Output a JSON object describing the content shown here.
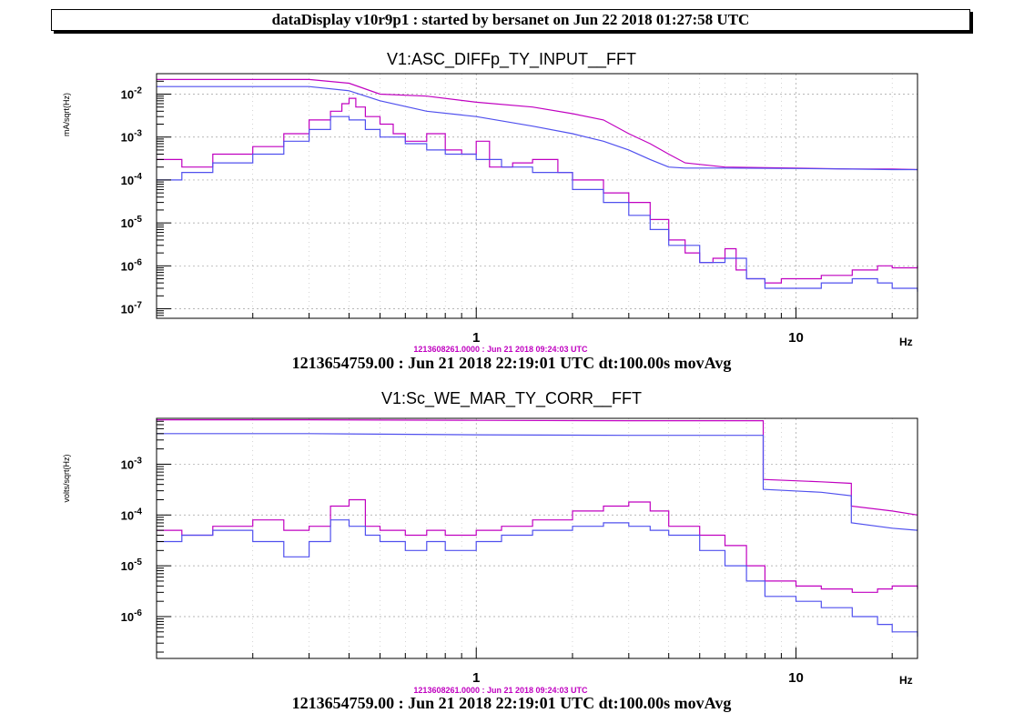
{
  "header": {
    "title": "dataDisplay v10r9p1 : started by bersanet on Jun 22 2018 01:27:58 UTC"
  },
  "colors": {
    "series_magenta": "#c000c0",
    "series_blue": "#5050ee",
    "grid": "#a0a0a0",
    "stamp": "#c000c0"
  },
  "chart_data": [
    {
      "type": "line",
      "title": "V1:ASC_DIFFp_TY_INPUT__FFT",
      "ylabel": "mA/sqrt(Hz)",
      "xlabel": "Hz",
      "x_scale": "log",
      "y_scale": "log",
      "xlim": [
        0.1,
        24
      ],
      "ylim": [
        6e-08,
        0.03
      ],
      "grid": true,
      "x_tick_labels": [
        {
          "value": 1,
          "label": "1"
        },
        {
          "value": 10,
          "label": "10"
        }
      ],
      "y_tick_labels": [
        {
          "value": 0.01,
          "mant": "10",
          "exp": "-2"
        },
        {
          "value": 0.001,
          "mant": "10",
          "exp": "-3"
        },
        {
          "value": 0.0001,
          "mant": "10",
          "exp": "-4"
        },
        {
          "value": 1e-05,
          "mant": "10",
          "exp": "-5"
        },
        {
          "value": 1e-06,
          "mant": "10",
          "exp": "-6"
        },
        {
          "value": 1e-07,
          "mant": "10",
          "exp": "-7"
        }
      ],
      "reference_stamp": "1213608261.0000 : Jun 21 2018 09:24:03 UTC",
      "footer": "1213654759.00 : Jun 21 2018 22:19:01 UTC dt:100.00s movAvg",
      "series": [
        {
          "style": "step",
          "color": "#c000c0",
          "x": [
            0.1,
            0.12,
            0.15,
            0.2,
            0.25,
            0.3,
            0.35,
            0.38,
            0.4,
            0.42,
            0.45,
            0.5,
            0.55,
            0.6,
            0.7,
            0.8,
            0.9,
            1.0,
            1.1,
            1.3,
            1.5,
            1.8,
            2.0,
            2.5,
            3.0,
            3.5,
            4.0,
            4.5,
            5.0,
            5.5,
            6.0,
            6.5,
            7.0,
            8.0,
            9.0,
            10,
            12,
            15,
            18,
            20,
            24
          ],
          "y": [
            0.0003,
            0.0002,
            0.0004,
            0.0006,
            0.0012,
            0.0025,
            0.004,
            0.006,
            0.008,
            0.005,
            0.003,
            0.002,
            0.0012,
            0.0008,
            0.0012,
            0.0005,
            0.0004,
            0.0008,
            0.0002,
            0.00025,
            0.0003,
            0.00015,
            0.0001,
            5e-05,
            3e-05,
            1.2e-05,
            4e-06,
            2e-06,
            1.2e-06,
            1.5e-06,
            2.5e-06,
            8e-07,
            5e-07,
            4e-07,
            5e-07,
            5e-07,
            6e-07,
            8e-07,
            1e-06,
            9e-07,
            1e-06
          ]
        },
        {
          "style": "step",
          "color": "#5050ee",
          "x": [
            0.1,
            0.12,
            0.15,
            0.2,
            0.25,
            0.3,
            0.35,
            0.4,
            0.45,
            0.5,
            0.6,
            0.7,
            0.8,
            1.0,
            1.2,
            1.5,
            2.0,
            2.5,
            3.0,
            3.5,
            4.0,
            5.0,
            6.0,
            7.0,
            8.0,
            10,
            12,
            15,
            18,
            20,
            24
          ],
          "y": [
            0.0001,
            0.00015,
            0.00025,
            0.0004,
            0.0008,
            0.0015,
            0.003,
            0.0025,
            0.0015,
            0.001,
            0.0007,
            0.0005,
            0.0004,
            0.0003,
            0.0002,
            0.00015,
            6e-05,
            3e-05,
            1.5e-05,
            7e-06,
            3e-06,
            1.2e-06,
            1.5e-06,
            5e-07,
            3e-07,
            3e-07,
            4e-07,
            5e-07,
            4e-07,
            3e-07,
            2.5e-07
          ]
        },
        {
          "style": "line",
          "color": "#c000c0",
          "x": [
            0.1,
            0.3,
            0.4,
            0.5,
            0.7,
            1.0,
            1.5,
            2.0,
            2.5,
            3.0,
            3.5,
            4.0,
            4.5,
            6.0,
            10,
            15,
            20,
            24
          ],
          "y": [
            0.022,
            0.022,
            0.018,
            0.01,
            0.009,
            0.0065,
            0.005,
            0.0035,
            0.0025,
            0.0012,
            0.0007,
            0.0004,
            0.00025,
            0.0002,
            0.00019,
            0.00018,
            0.00018,
            0.000175
          ]
        },
        {
          "style": "line",
          "color": "#5050ee",
          "x": [
            0.1,
            0.3,
            0.4,
            0.5,
            0.7,
            1.0,
            1.5,
            2.0,
            2.5,
            3.0,
            3.5,
            4.0,
            4.5,
            6.0,
            10,
            15,
            20,
            24
          ],
          "y": [
            0.015,
            0.015,
            0.012,
            0.007,
            0.004,
            0.003,
            0.0018,
            0.0012,
            0.0008,
            0.0005,
            0.0003,
            0.0002,
            0.00019,
            0.00019,
            0.000185,
            0.00018,
            0.000175,
            0.000175
          ]
        }
      ]
    },
    {
      "type": "line",
      "title": "V1:Sc_WE_MAR_TY_CORR__FFT",
      "ylabel": "volts/sqrt(Hz)",
      "xlabel": "Hz",
      "x_scale": "log",
      "y_scale": "log",
      "xlim": [
        0.1,
        24
      ],
      "ylim": [
        1.5e-07,
        0.008
      ],
      "grid": true,
      "x_tick_labels": [
        {
          "value": 1,
          "label": "1"
        },
        {
          "value": 10,
          "label": "10"
        }
      ],
      "y_tick_labels": [
        {
          "value": 0.001,
          "mant": "10",
          "exp": "-3"
        },
        {
          "value": 0.0001,
          "mant": "10",
          "exp": "-4"
        },
        {
          "value": 1e-05,
          "mant": "10",
          "exp": "-5"
        },
        {
          "value": 1e-06,
          "mant": "10",
          "exp": "-6"
        }
      ],
      "reference_stamp": "1213608261.0000 : Jun 21 2018 09:24:03 UTC",
      "footer": "1213654759.00 : Jun 21 2018 22:19:01 UTC dt:100.00s movAvg",
      "series": [
        {
          "style": "step",
          "color": "#c000c0",
          "x": [
            0.1,
            0.12,
            0.15,
            0.2,
            0.25,
            0.3,
            0.35,
            0.4,
            0.45,
            0.5,
            0.6,
            0.7,
            0.8,
            1.0,
            1.2,
            1.5,
            2.0,
            2.5,
            3.0,
            3.5,
            4.0,
            5.0,
            6.0,
            7.0,
            8.0,
            10,
            12,
            15,
            18,
            20,
            24
          ],
          "y": [
            5e-05,
            4e-05,
            6e-05,
            8e-05,
            5e-05,
            6e-05,
            0.00015,
            0.0002,
            6e-05,
            5e-05,
            4e-05,
            5e-05,
            4e-05,
            5e-05,
            6e-05,
            8e-05,
            0.00012,
            0.00015,
            0.00018,
            0.00012,
            6e-05,
            4e-05,
            2.5e-05,
            1e-05,
            5e-06,
            4e-06,
            3.5e-06,
            3e-06,
            3.5e-06,
            4e-06,
            3.5e-06
          ]
        },
        {
          "style": "step",
          "color": "#5050ee",
          "x": [
            0.1,
            0.12,
            0.15,
            0.2,
            0.25,
            0.3,
            0.35,
            0.4,
            0.45,
            0.5,
            0.6,
            0.7,
            0.8,
            1.0,
            1.2,
            1.5,
            2.0,
            2.5,
            3.0,
            3.5,
            4.0,
            5.0,
            6.0,
            7.0,
            8.0,
            10,
            12,
            15,
            18,
            20,
            24
          ],
          "y": [
            3e-05,
            4e-05,
            5e-05,
            3e-05,
            1.5e-05,
            3e-05,
            8e-05,
            6e-05,
            4e-05,
            3e-05,
            2e-05,
            3e-05,
            2e-05,
            3e-05,
            4e-05,
            5e-05,
            6e-05,
            7e-05,
            6e-05,
            5e-05,
            4e-05,
            2e-05,
            1e-05,
            5e-06,
            2.5e-06,
            2e-06,
            1.5e-06,
            1e-06,
            7e-07,
            5e-07,
            4e-07
          ]
        },
        {
          "style": "line",
          "color": "#c000c0",
          "x": [
            0.1,
            0.3,
            1.0,
            3.0,
            7.9,
            7.9,
            12,
            14.9,
            14.9,
            20,
            24
          ],
          "y": [
            0.0075,
            0.0075,
            0.0073,
            0.0072,
            0.0072,
            0.0005,
            0.00045,
            0.00042,
            0.00015,
            0.00012,
            0.0001
          ]
        },
        {
          "style": "line",
          "color": "#5050ee",
          "x": [
            0.1,
            0.3,
            1.0,
            3.0,
            7.9,
            7.9,
            12,
            14.9,
            14.9,
            20,
            24
          ],
          "y": [
            0.004,
            0.004,
            0.0038,
            0.0037,
            0.0037,
            0.00032,
            0.00028,
            0.00024,
            7e-05,
            5.5e-05,
            5e-05
          ]
        }
      ]
    }
  ]
}
